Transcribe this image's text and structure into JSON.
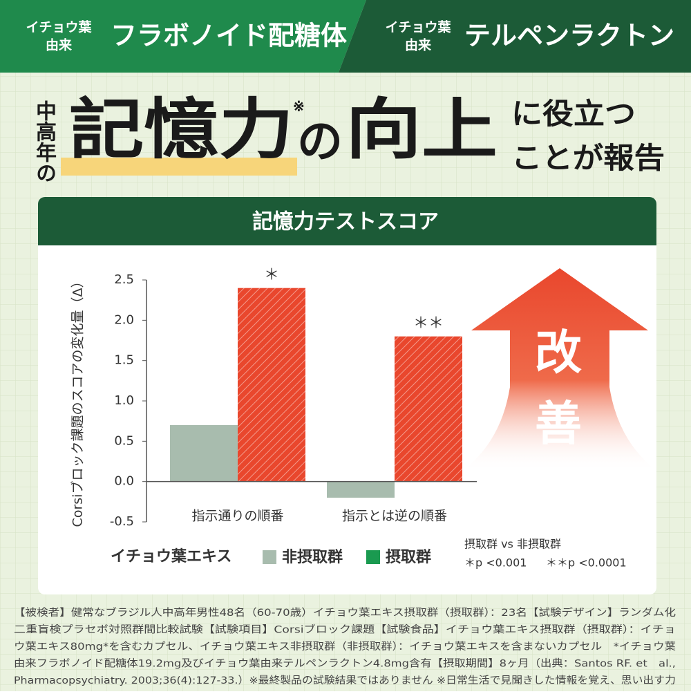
{
  "header": {
    "tabs": [
      {
        "prefix": [
          "イチョウ葉",
          "由来"
        ],
        "title": "フラボノイド配糖体"
      },
      {
        "prefix": [
          "イチョウ葉",
          "由来"
        ],
        "title": "テルペンラクトン"
      }
    ]
  },
  "headline": {
    "side": "中高年の",
    "main1": "記憶力",
    "mark": "※",
    "particle": "の",
    "main2": "向上",
    "tail": [
      "に役立つ",
      "ことが報告"
    ]
  },
  "chart_data": {
    "type": "bar",
    "title": "記憶力テストスコア",
    "y_label": "Corsiブロック課題のスコアの変化量（Δ）",
    "categories": [
      "指示通りの順番",
      "指示とは逆の順番"
    ],
    "series": [
      {
        "name": "非摂取群",
        "color": "#a8bcae",
        "values": [
          0.7,
          -0.2
        ]
      },
      {
        "name": "摂取群",
        "color": "#e9472d",
        "legend_color": "#1a9a50",
        "values": [
          2.4,
          1.8
        ],
        "markers": [
          "＊",
          "＊＊"
        ]
      }
    ],
    "legend_title": "イチョウ葉エキス",
    "ylim": [
      -0.5,
      2.5
    ],
    "yticks": [
      -0.5,
      {
        "value": 0,
        "label": "0.0"
      },
      0.5,
      {
        "value": 1,
        "label": "1.0"
      },
      1.5,
      {
        "value": 2,
        "label": "2.0"
      },
      2.5
    ],
    "notes": [
      "摂取群 vs 非摂取群",
      "＊p <0.001",
      "＊＊p <0.0001"
    ],
    "arrow_text": [
      "改",
      "善"
    ]
  },
  "footnote": [
    "【被検者】健常なブラジル人中高年男性48名（60-70歳）イチョウ葉エキス摂取群（摂取群）：23名【試験デザイン】ランダム化",
    "二重盲検プラセボ対照群間比較試験【試験項目】Corsiブロック課題【試験食品】イチョウ葉エキス摂取群（摂取群）：イチョ",
    "ウ葉エキス80mg*を含むカプセル、イチョウ葉エキス非摂取群（非摂取群）：イチョウ葉エキスを含まないカプセル　*イチョウ葉",
    "由来フラボノイド配糖体19.2mg及びイチョウ葉由来テルペンラクトン4.8mg含有【摂取期間】8ヶ月（出典：Santos RF. et　al.,",
    "Pharmacopsychiatry. 2003;36(4):127-33.）※最終製品の試験結果ではありません ※日常生活で見聞きした情報を覚え、思い出す力"
  ]
}
